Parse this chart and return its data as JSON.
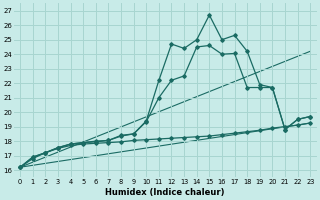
{
  "xlabel": "Humidex (Indice chaleur)",
  "background_color": "#c8ebe8",
  "grid_color": "#a8d5d0",
  "line_color": "#1a6b63",
  "xlim": [
    -0.5,
    23.5
  ],
  "ylim": [
    15.5,
    27.5
  ],
  "yticks": [
    16,
    17,
    18,
    19,
    20,
    21,
    22,
    23,
    24,
    25,
    26,
    27
  ],
  "xticks": [
    0,
    1,
    2,
    3,
    4,
    5,
    6,
    7,
    8,
    9,
    10,
    11,
    12,
    13,
    14,
    15,
    16,
    17,
    18,
    19,
    20,
    21,
    22,
    23
  ],
  "line_min_x": [
    0,
    1,
    2,
    3,
    4,
    5,
    6,
    7,
    8,
    9,
    10,
    11,
    12,
    13,
    14,
    15,
    16,
    17,
    18,
    19,
    20,
    21,
    22,
    23
  ],
  "line_min_y": [
    16.2,
    16.8,
    17.2,
    17.5,
    17.7,
    17.8,
    17.85,
    17.9,
    17.95,
    18.05,
    18.1,
    18.15,
    18.2,
    18.25,
    18.3,
    18.35,
    18.45,
    18.55,
    18.65,
    18.75,
    18.9,
    19.0,
    19.1,
    19.25
  ],
  "line_mid_x": [
    0,
    1,
    2,
    3,
    4,
    5,
    6,
    7,
    8,
    9,
    10,
    11,
    12,
    13,
    14,
    15,
    16,
    17,
    18,
    19,
    20,
    21,
    22,
    23
  ],
  "line_mid_y": [
    16.2,
    16.9,
    17.2,
    17.55,
    17.8,
    17.9,
    17.95,
    18.05,
    18.35,
    18.5,
    19.35,
    21.0,
    22.2,
    22.5,
    24.5,
    24.6,
    24.0,
    24.05,
    21.7,
    21.7,
    21.7,
    18.8,
    19.5,
    19.7
  ],
  "line_max_x": [
    0,
    1,
    2,
    3,
    4,
    5,
    6,
    7,
    8,
    9,
    10,
    11,
    12,
    13,
    14,
    15,
    16,
    17,
    18,
    19,
    20,
    21,
    22,
    23
  ],
  "line_max_y": [
    16.2,
    16.9,
    17.2,
    17.55,
    17.8,
    17.9,
    18.0,
    18.05,
    18.4,
    18.5,
    19.4,
    22.2,
    24.7,
    24.4,
    25.0,
    26.7,
    25.0,
    25.3,
    24.2,
    21.9,
    21.7,
    18.8,
    19.5,
    19.7
  ],
  "reg_line1_x": [
    0,
    23
  ],
  "reg_line1_y": [
    16.2,
    19.25
  ],
  "reg_line2_x": [
    0,
    23
  ],
  "reg_line2_y": [
    16.2,
    24.2
  ]
}
